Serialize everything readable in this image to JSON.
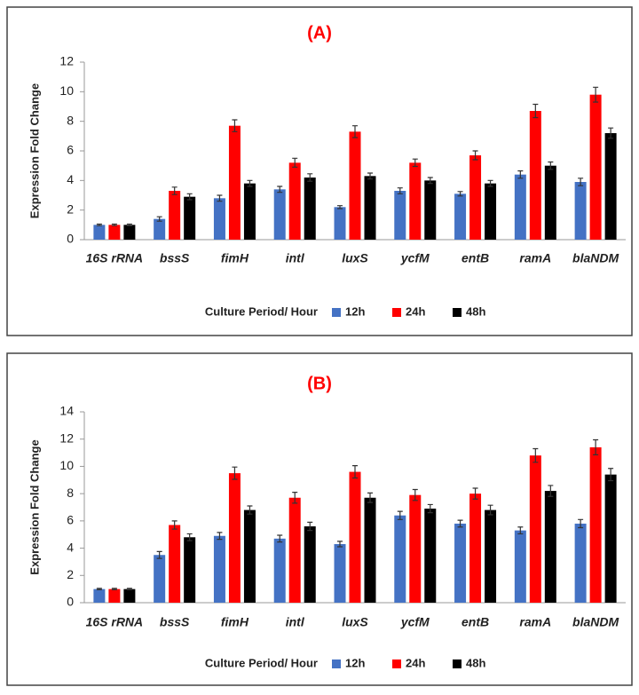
{
  "chart_data": [
    {
      "type": "bar",
      "title": "(A)",
      "y_label": "Expression Fold Change",
      "legend_title": "Culture Period/ Hour",
      "categories": [
        "16S rRNA",
        "bssS",
        "fimH",
        "intl",
        "luxS",
        "ycfM",
        "entB",
        "ramA",
        "blaNDM"
      ],
      "series": [
        {
          "name": "12h",
          "color": "#4472c4",
          "values": [
            1.0,
            1.4,
            2.8,
            3.4,
            2.2,
            3.3,
            3.1,
            4.4,
            3.9
          ],
          "errors": [
            0.05,
            0.15,
            0.2,
            0.2,
            0.1,
            0.2,
            0.15,
            0.25,
            0.25
          ]
        },
        {
          "name": "24h",
          "color": "#ff0000",
          "values": [
            1.0,
            3.3,
            7.7,
            5.2,
            7.3,
            5.2,
            5.7,
            8.7,
            9.8
          ],
          "errors": [
            0.05,
            0.25,
            0.4,
            0.3,
            0.4,
            0.25,
            0.3,
            0.45,
            0.5
          ]
        },
        {
          "name": "48h",
          "color": "#000000",
          "values": [
            1.0,
            2.9,
            3.8,
            4.2,
            4.3,
            4.0,
            3.8,
            5.0,
            7.2
          ],
          "errors": [
            0.05,
            0.2,
            0.2,
            0.25,
            0.2,
            0.2,
            0.2,
            0.25,
            0.35
          ]
        }
      ],
      "ylim": [
        0,
        12
      ],
      "yticks": [
        0,
        2,
        4,
        6,
        8,
        10,
        12
      ]
    },
    {
      "type": "bar",
      "title": "(B)",
      "y_label": "Expression Fold Change",
      "legend_title": "Culture Period/ Hour",
      "categories": [
        "16S rRNA",
        "bssS",
        "fimH",
        "intl",
        "luxS",
        "ycfM",
        "entB",
        "ramA",
        "blaNDM"
      ],
      "series": [
        {
          "name": "12h",
          "color": "#4472c4",
          "values": [
            1.0,
            3.5,
            4.9,
            4.7,
            4.3,
            6.4,
            5.8,
            5.3,
            5.8
          ],
          "errors": [
            0.05,
            0.25,
            0.25,
            0.25,
            0.2,
            0.3,
            0.25,
            0.25,
            0.3
          ]
        },
        {
          "name": "24h",
          "color": "#ff0000",
          "values": [
            1.0,
            5.7,
            9.5,
            7.7,
            9.6,
            7.9,
            8.0,
            10.8,
            11.4
          ],
          "errors": [
            0.05,
            0.3,
            0.45,
            0.4,
            0.45,
            0.4,
            0.4,
            0.5,
            0.55
          ]
        },
        {
          "name": "48h",
          "color": "#000000",
          "values": [
            1.0,
            4.8,
            6.8,
            5.6,
            7.7,
            6.9,
            6.8,
            8.2,
            9.4
          ],
          "errors": [
            0.05,
            0.25,
            0.3,
            0.3,
            0.35,
            0.3,
            0.35,
            0.4,
            0.45
          ]
        }
      ],
      "ylim": [
        0,
        14
      ],
      "yticks": [
        0,
        2,
        4,
        6,
        8,
        10,
        12,
        14
      ]
    }
  ]
}
